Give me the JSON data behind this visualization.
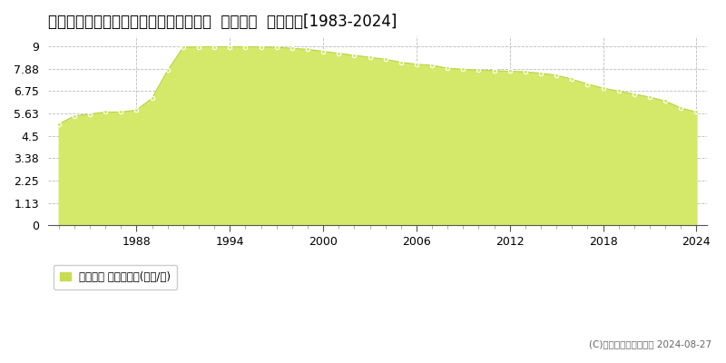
{
  "title": "栃木県足利市菅田町字東根８６９番１外  地価公示  地価推移[1983-2024]",
  "years": [
    1983,
    1984,
    1985,
    1986,
    1987,
    1988,
    1989,
    1990,
    1991,
    1992,
    1993,
    1994,
    1995,
    1996,
    1997,
    1998,
    1999,
    2000,
    2001,
    2002,
    2003,
    2004,
    2005,
    2006,
    2007,
    2008,
    2009,
    2010,
    2011,
    2012,
    2013,
    2014,
    2015,
    2016,
    2017,
    2018,
    2019,
    2020,
    2021,
    2022,
    2023,
    2024
  ],
  "values": [
    5.1,
    5.5,
    5.6,
    5.7,
    5.7,
    5.8,
    6.4,
    7.8,
    8.95,
    8.98,
    8.98,
    8.98,
    8.98,
    8.97,
    8.95,
    8.9,
    8.85,
    8.75,
    8.65,
    8.55,
    8.45,
    8.35,
    8.2,
    8.1,
    8.05,
    7.9,
    7.85,
    7.8,
    7.78,
    7.75,
    7.72,
    7.65,
    7.55,
    7.35,
    7.1,
    6.9,
    6.75,
    6.6,
    6.45,
    6.25,
    5.9,
    5.7
  ],
  "fill_color": "#d4e86a",
  "line_color": "#bdd44a",
  "marker_face_color": "#d4e86a",
  "marker_edge_color": "#ffffff",
  "background_color": "#ffffff",
  "plot_bg_color": "#ffffff",
  "yticks": [
    0,
    1.13,
    2.25,
    3.38,
    4.5,
    5.63,
    6.75,
    7.88,
    9
  ],
  "ytick_labels": [
    "0",
    "1.13",
    "2.25",
    "3.38",
    "4.5",
    "5.63",
    "6.75",
    "7.88",
    "9"
  ],
  "xticks": [
    1988,
    1994,
    2000,
    2006,
    2012,
    2018,
    2024
  ],
  "xlim": [
    1982.3,
    2024.7
  ],
  "ylim": [
    0,
    9.5
  ],
  "grid_color": "#bbbbbb",
  "grid_linestyle": "--",
  "title_fontsize": 12,
  "tick_fontsize": 9,
  "legend_label": "地価公示 平均坪単価(万円/坪)",
  "copyright_text": "(C)土地価格ドットコム 2024-08-27",
  "legend_marker_color": "#c8dc50"
}
